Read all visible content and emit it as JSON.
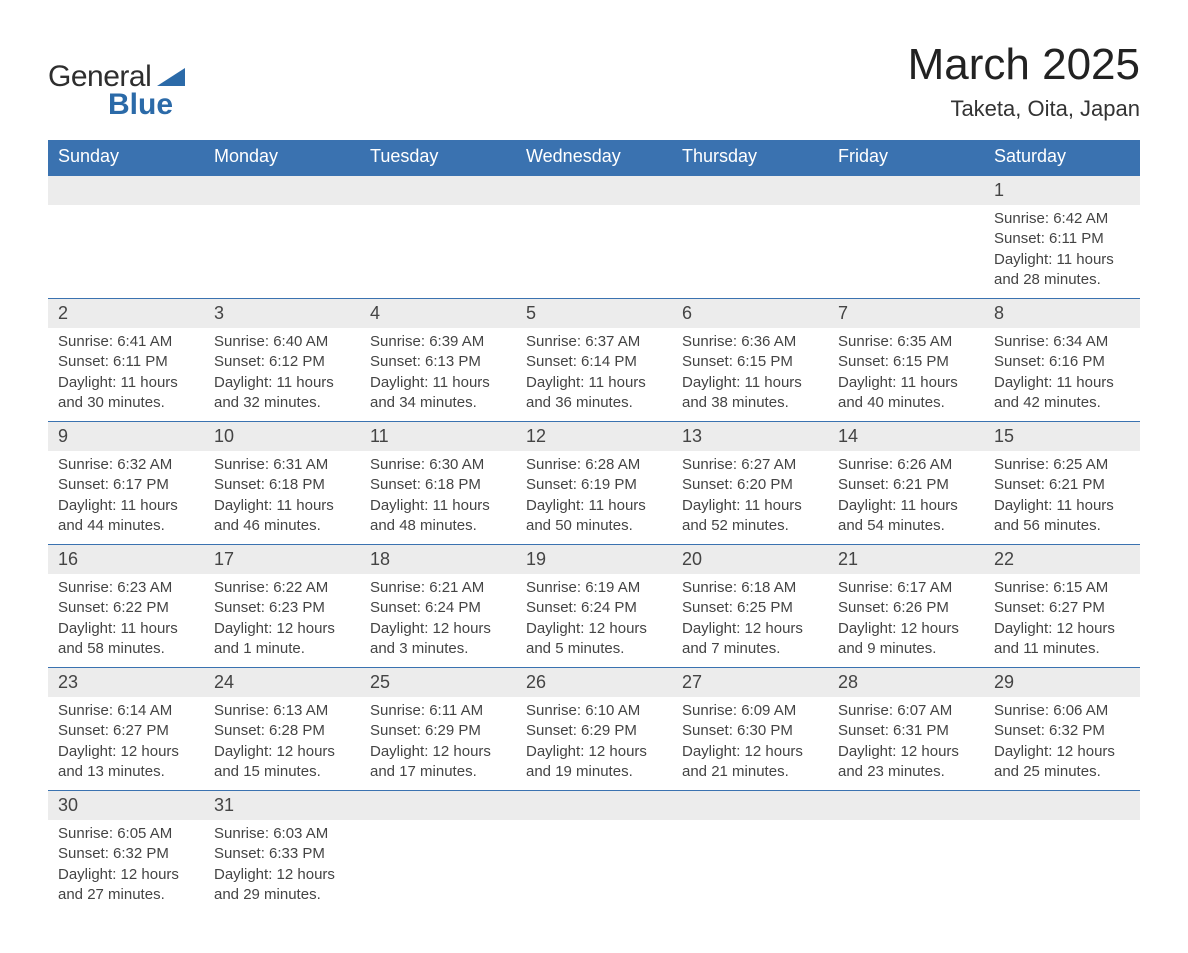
{
  "brand": {
    "part1": "General",
    "part2": "Blue",
    "accent": "#2b6aa8"
  },
  "title": "March 2025",
  "subtitle": "Taketa, Oita, Japan",
  "colors": {
    "header_bg": "#3a72b0",
    "header_text": "#ffffff",
    "daynum_bg": "#ececec",
    "row_border": "#3a72b0",
    "text": "#444444"
  },
  "weekdays": [
    "Sunday",
    "Monday",
    "Tuesday",
    "Wednesday",
    "Thursday",
    "Friday",
    "Saturday"
  ],
  "weeks": [
    [
      null,
      null,
      null,
      null,
      null,
      null,
      {
        "n": "1",
        "sr": "Sunrise: 6:42 AM",
        "ss": "Sunset: 6:11 PM",
        "d1": "Daylight: 11 hours",
        "d2": "and 28 minutes."
      }
    ],
    [
      {
        "n": "2",
        "sr": "Sunrise: 6:41 AM",
        "ss": "Sunset: 6:11 PM",
        "d1": "Daylight: 11 hours",
        "d2": "and 30 minutes."
      },
      {
        "n": "3",
        "sr": "Sunrise: 6:40 AM",
        "ss": "Sunset: 6:12 PM",
        "d1": "Daylight: 11 hours",
        "d2": "and 32 minutes."
      },
      {
        "n": "4",
        "sr": "Sunrise: 6:39 AM",
        "ss": "Sunset: 6:13 PM",
        "d1": "Daylight: 11 hours",
        "d2": "and 34 minutes."
      },
      {
        "n": "5",
        "sr": "Sunrise: 6:37 AM",
        "ss": "Sunset: 6:14 PM",
        "d1": "Daylight: 11 hours",
        "d2": "and 36 minutes."
      },
      {
        "n": "6",
        "sr": "Sunrise: 6:36 AM",
        "ss": "Sunset: 6:15 PM",
        "d1": "Daylight: 11 hours",
        "d2": "and 38 minutes."
      },
      {
        "n": "7",
        "sr": "Sunrise: 6:35 AM",
        "ss": "Sunset: 6:15 PM",
        "d1": "Daylight: 11 hours",
        "d2": "and 40 minutes."
      },
      {
        "n": "8",
        "sr": "Sunrise: 6:34 AM",
        "ss": "Sunset: 6:16 PM",
        "d1": "Daylight: 11 hours",
        "d2": "and 42 minutes."
      }
    ],
    [
      {
        "n": "9",
        "sr": "Sunrise: 6:32 AM",
        "ss": "Sunset: 6:17 PM",
        "d1": "Daylight: 11 hours",
        "d2": "and 44 minutes."
      },
      {
        "n": "10",
        "sr": "Sunrise: 6:31 AM",
        "ss": "Sunset: 6:18 PM",
        "d1": "Daylight: 11 hours",
        "d2": "and 46 minutes."
      },
      {
        "n": "11",
        "sr": "Sunrise: 6:30 AM",
        "ss": "Sunset: 6:18 PM",
        "d1": "Daylight: 11 hours",
        "d2": "and 48 minutes."
      },
      {
        "n": "12",
        "sr": "Sunrise: 6:28 AM",
        "ss": "Sunset: 6:19 PM",
        "d1": "Daylight: 11 hours",
        "d2": "and 50 minutes."
      },
      {
        "n": "13",
        "sr": "Sunrise: 6:27 AM",
        "ss": "Sunset: 6:20 PM",
        "d1": "Daylight: 11 hours",
        "d2": "and 52 minutes."
      },
      {
        "n": "14",
        "sr": "Sunrise: 6:26 AM",
        "ss": "Sunset: 6:21 PM",
        "d1": "Daylight: 11 hours",
        "d2": "and 54 minutes."
      },
      {
        "n": "15",
        "sr": "Sunrise: 6:25 AM",
        "ss": "Sunset: 6:21 PM",
        "d1": "Daylight: 11 hours",
        "d2": "and 56 minutes."
      }
    ],
    [
      {
        "n": "16",
        "sr": "Sunrise: 6:23 AM",
        "ss": "Sunset: 6:22 PM",
        "d1": "Daylight: 11 hours",
        "d2": "and 58 minutes."
      },
      {
        "n": "17",
        "sr": "Sunrise: 6:22 AM",
        "ss": "Sunset: 6:23 PM",
        "d1": "Daylight: 12 hours",
        "d2": "and 1 minute."
      },
      {
        "n": "18",
        "sr": "Sunrise: 6:21 AM",
        "ss": "Sunset: 6:24 PM",
        "d1": "Daylight: 12 hours",
        "d2": "and 3 minutes."
      },
      {
        "n": "19",
        "sr": "Sunrise: 6:19 AM",
        "ss": "Sunset: 6:24 PM",
        "d1": "Daylight: 12 hours",
        "d2": "and 5 minutes."
      },
      {
        "n": "20",
        "sr": "Sunrise: 6:18 AM",
        "ss": "Sunset: 6:25 PM",
        "d1": "Daylight: 12 hours",
        "d2": "and 7 minutes."
      },
      {
        "n": "21",
        "sr": "Sunrise: 6:17 AM",
        "ss": "Sunset: 6:26 PM",
        "d1": "Daylight: 12 hours",
        "d2": "and 9 minutes."
      },
      {
        "n": "22",
        "sr": "Sunrise: 6:15 AM",
        "ss": "Sunset: 6:27 PM",
        "d1": "Daylight: 12 hours",
        "d2": "and 11 minutes."
      }
    ],
    [
      {
        "n": "23",
        "sr": "Sunrise: 6:14 AM",
        "ss": "Sunset: 6:27 PM",
        "d1": "Daylight: 12 hours",
        "d2": "and 13 minutes."
      },
      {
        "n": "24",
        "sr": "Sunrise: 6:13 AM",
        "ss": "Sunset: 6:28 PM",
        "d1": "Daylight: 12 hours",
        "d2": "and 15 minutes."
      },
      {
        "n": "25",
        "sr": "Sunrise: 6:11 AM",
        "ss": "Sunset: 6:29 PM",
        "d1": "Daylight: 12 hours",
        "d2": "and 17 minutes."
      },
      {
        "n": "26",
        "sr": "Sunrise: 6:10 AM",
        "ss": "Sunset: 6:29 PM",
        "d1": "Daylight: 12 hours",
        "d2": "and 19 minutes."
      },
      {
        "n": "27",
        "sr": "Sunrise: 6:09 AM",
        "ss": "Sunset: 6:30 PM",
        "d1": "Daylight: 12 hours",
        "d2": "and 21 minutes."
      },
      {
        "n": "28",
        "sr": "Sunrise: 6:07 AM",
        "ss": "Sunset: 6:31 PM",
        "d1": "Daylight: 12 hours",
        "d2": "and 23 minutes."
      },
      {
        "n": "29",
        "sr": "Sunrise: 6:06 AM",
        "ss": "Sunset: 6:32 PM",
        "d1": "Daylight: 12 hours",
        "d2": "and 25 minutes."
      }
    ],
    [
      {
        "n": "30",
        "sr": "Sunrise: 6:05 AM",
        "ss": "Sunset: 6:32 PM",
        "d1": "Daylight: 12 hours",
        "d2": "and 27 minutes."
      },
      {
        "n": "31",
        "sr": "Sunrise: 6:03 AM",
        "ss": "Sunset: 6:33 PM",
        "d1": "Daylight: 12 hours",
        "d2": "and 29 minutes."
      },
      null,
      null,
      null,
      null,
      null
    ]
  ]
}
